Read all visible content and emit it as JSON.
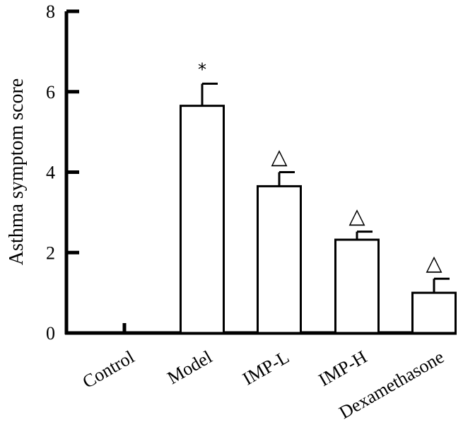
{
  "chart_data": {
    "type": "bar",
    "title": "",
    "xlabel": "",
    "ylabel": "Asthma symptom score",
    "ylim": [
      0,
      8
    ],
    "yticks": [
      "0",
      "2",
      "4",
      "6",
      "8"
    ],
    "categories": [
      "Control",
      "Model",
      "IMP-L",
      "IMP-H",
      "Dexamethasone"
    ],
    "values": [
      0,
      5.65,
      3.65,
      2.32,
      1.0
    ],
    "errors": [
      0,
      0.55,
      0.35,
      0.2,
      0.35
    ],
    "annotations": [
      "",
      "*",
      "△",
      "△",
      "△"
    ],
    "grid": false,
    "legend": "none",
    "bar_fill": "#ffffff",
    "bar_stroke": "#000000"
  }
}
